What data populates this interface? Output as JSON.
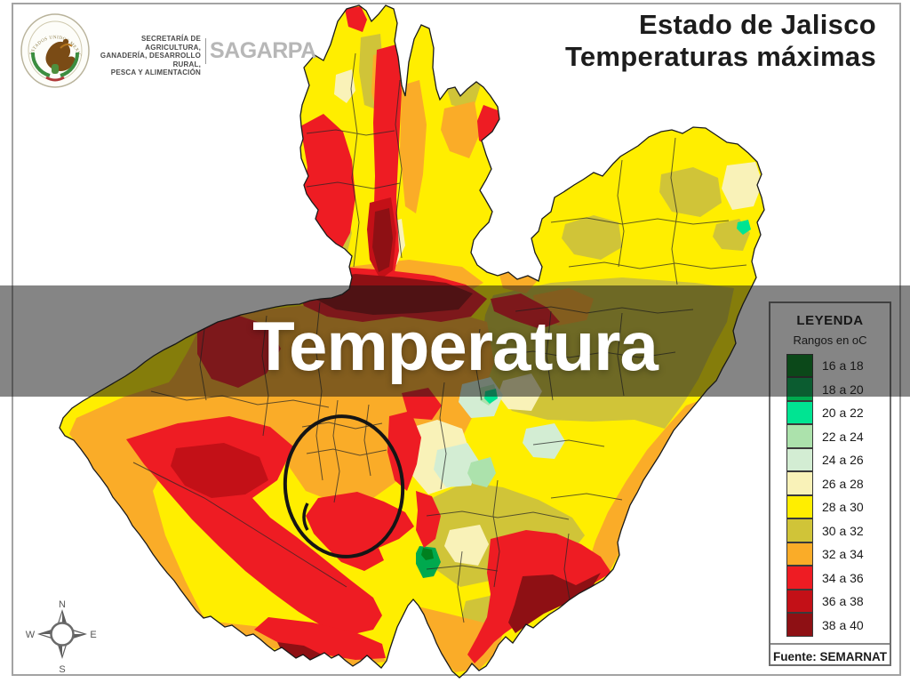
{
  "logo_block": {
    "seal_text": "ESTADOS UNIDOS MEXICANOS",
    "ministry_lines": [
      "SECRETARÍA DE AGRICULTURA,",
      "GANADERÍA, DESARROLLO RURAL,",
      "PESCA Y ALIMENTACIÓN"
    ],
    "acronym": "SAGARPA"
  },
  "map_title": {
    "line1": "Estado de Jalisco",
    "line2": "Temperaturas máximas"
  },
  "overlay_banner": {
    "text": "Temperatura",
    "band_color": "rgba(22,22,22,0.52)",
    "text_color": "#ffffff"
  },
  "legend": {
    "title": "LEYENDA",
    "subtitle": "Rangos en oC",
    "source": "Fuente: SEMARNAT",
    "ranges": [
      {
        "label": "16 a 18",
        "color": "#00801F"
      },
      {
        "label": "18 a 20",
        "color": "#00A94E"
      },
      {
        "label": "20 a 22",
        "color": "#00E492"
      },
      {
        "label": "22 a 24",
        "color": "#ACE2AC"
      },
      {
        "label": "24 a 26",
        "color": "#D3EDD3"
      },
      {
        "label": "26 a 28",
        "color": "#F9F2B8"
      },
      {
        "label": "28 a 30",
        "color": "#FFEE00"
      },
      {
        "label": "30 a 32",
        "color": "#D0C438"
      },
      {
        "label": "32 a 34",
        "color": "#FAAC28"
      },
      {
        "label": "34 a 36",
        "color": "#EE1C23"
      },
      {
        "label": "36 a 38",
        "color": "#C31017"
      },
      {
        "label": "38 a 40",
        "color": "#8E1014"
      }
    ]
  },
  "compass": {
    "north": "N",
    "east": "E",
    "south": "S",
    "west": "W"
  },
  "map": {
    "region_shown": "Jalisco",
    "annotation": "hand-drawn circle around central municipalities"
  }
}
